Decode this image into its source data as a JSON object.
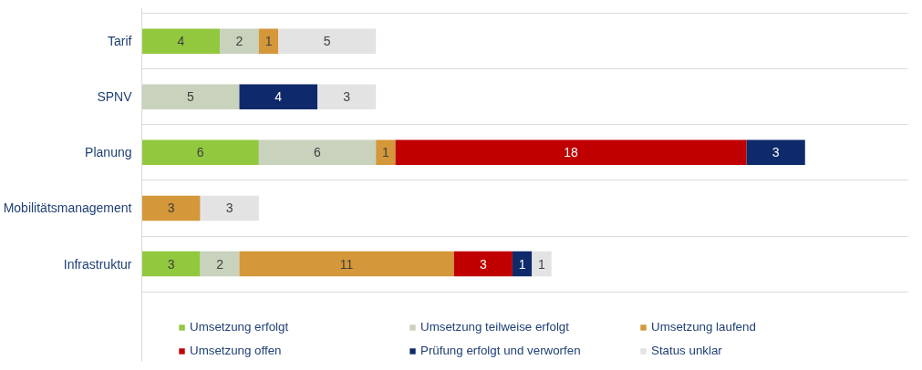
{
  "chart_data": {
    "type": "bar",
    "orientation": "horizontal",
    "stacked": true,
    "data_labels": true,
    "grid": "y",
    "legend": "bottom",
    "categories": [
      "Tarif",
      "SPNV",
      "Planung",
      "Mobilitätsmanagement",
      "Infrastruktur"
    ],
    "series": [
      {
        "name": "Umsetzung erfolgt",
        "color": "#92c83e",
        "values": [
          4,
          null,
          6,
          null,
          3
        ]
      },
      {
        "name": "Umsetzung teilweise erfolgt",
        "color": "#c8d2bd",
        "values": [
          2,
          5,
          6,
          null,
          2
        ]
      },
      {
        "name": "Umsetzung laufend",
        "color": "#d4973a",
        "values": [
          1,
          null,
          1,
          3,
          11
        ]
      },
      {
        "name": "Umsetzung offen",
        "color": "#c00000",
        "values": [
          null,
          null,
          18,
          null,
          3
        ]
      },
      {
        "name": "Prüfung erfolgt und verworfen",
        "color": "#0f2a6b",
        "values": [
          null,
          4,
          3,
          null,
          1
        ]
      },
      {
        "name": "Status unklar",
        "color": "#e3e3e3",
        "values": [
          5,
          3,
          null,
          3,
          1
        ]
      }
    ]
  }
}
